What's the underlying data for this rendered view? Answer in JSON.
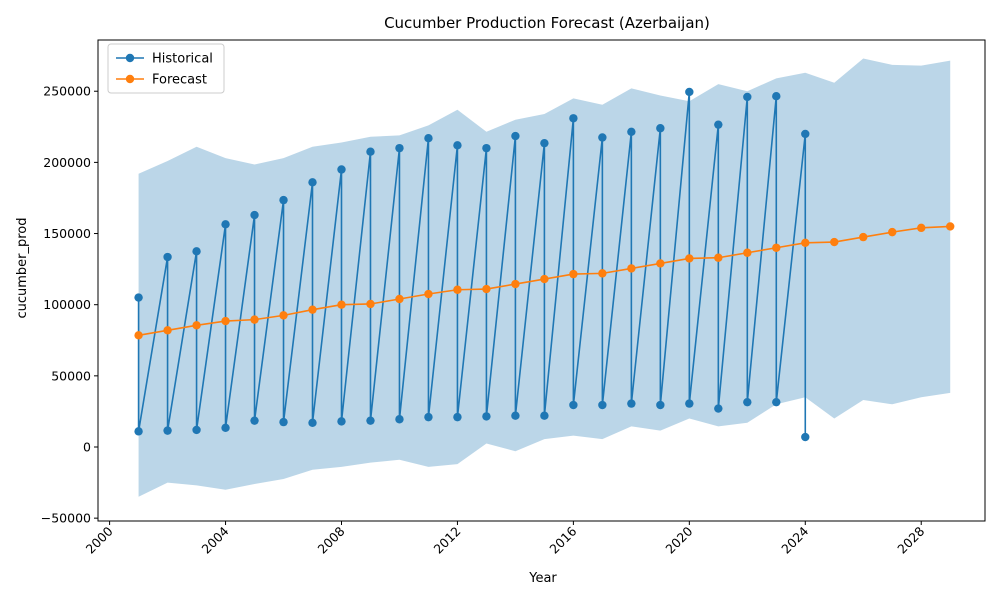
{
  "chart_data": {
    "type": "line",
    "title": "Cucumber Production Forecast (Azerbaijan)",
    "xlabel": "Year",
    "ylabel": "cucumber_prod",
    "xlim": [
      1999.6,
      2030.2
    ],
    "ylim": [
      -52000,
      286000
    ],
    "xticks": [
      2000,
      2004,
      2008,
      2012,
      2016,
      2020,
      2024,
      2028
    ],
    "yticks": [
      -50000,
      0,
      50000,
      100000,
      150000,
      200000,
      250000
    ],
    "legend_position": "top-left",
    "colors": {
      "historical": "#1f77b4",
      "forecast": "#ff7f0e",
      "band": "#1f77b4"
    },
    "series": [
      {
        "name": "Historical",
        "marker": "circle",
        "points": [
          [
            2001,
            105000
          ],
          [
            2001,
            11000
          ],
          [
            2002,
            133500
          ],
          [
            2002,
            11500
          ],
          [
            2003,
            137500
          ],
          [
            2003,
            12000
          ],
          [
            2004,
            156500
          ],
          [
            2004,
            13500
          ],
          [
            2005,
            163000
          ],
          [
            2005,
            18500
          ],
          [
            2006,
            173500
          ],
          [
            2006,
            17500
          ],
          [
            2007,
            186000
          ],
          [
            2007,
            17000
          ],
          [
            2008,
            195000
          ],
          [
            2008,
            18000
          ],
          [
            2009,
            207500
          ],
          [
            2009,
            18500
          ],
          [
            2010,
            210000
          ],
          [
            2010,
            19500
          ],
          [
            2011,
            217000
          ],
          [
            2011,
            21000
          ],
          [
            2012,
            212000
          ],
          [
            2012,
            21000
          ],
          [
            2013,
            210000
          ],
          [
            2013,
            21500
          ],
          [
            2014,
            218500
          ],
          [
            2014,
            22000
          ],
          [
            2015,
            213500
          ],
          [
            2015,
            22000
          ],
          [
            2016,
            231000
          ],
          [
            2016,
            29500
          ],
          [
            2017,
            217500
          ],
          [
            2017,
            29500
          ],
          [
            2018,
            221500
          ],
          [
            2018,
            30500
          ],
          [
            2019,
            224000
          ],
          [
            2019,
            29500
          ],
          [
            2020,
            249500
          ],
          [
            2020,
            30500
          ],
          [
            2021,
            226500
          ],
          [
            2021,
            27000
          ],
          [
            2022,
            246000
          ],
          [
            2022,
            31500
          ],
          [
            2023,
            246500
          ],
          [
            2023,
            31500
          ],
          [
            2024,
            220000
          ],
          [
            2024,
            7000
          ]
        ]
      },
      {
        "name": "Forecast",
        "marker": "circle",
        "points": [
          [
            2001,
            78500
          ],
          [
            2002,
            82000
          ],
          [
            2003,
            85500
          ],
          [
            2004,
            88500
          ],
          [
            2005,
            89500
          ],
          [
            2006,
            92500
          ],
          [
            2007,
            96500
          ],
          [
            2008,
            100000
          ],
          [
            2009,
            100500
          ],
          [
            2010,
            104000
          ],
          [
            2011,
            107500
          ],
          [
            2012,
            110500
          ],
          [
            2013,
            111000
          ],
          [
            2014,
            114500
          ],
          [
            2015,
            118000
          ],
          [
            2016,
            121500
          ],
          [
            2017,
            122000
          ],
          [
            2018,
            125500
          ],
          [
            2019,
            129000
          ],
          [
            2020,
            132500
          ],
          [
            2021,
            133000
          ],
          [
            2022,
            136500
          ],
          [
            2023,
            140000
          ],
          [
            2024,
            143500
          ],
          [
            2025,
            144000
          ],
          [
            2026,
            147500
          ],
          [
            2027,
            151000
          ],
          [
            2028,
            154000
          ],
          [
            2029,
            155000
          ]
        ]
      }
    ],
    "confidence_band": {
      "x": [
        2001,
        2002,
        2003,
        2004,
        2005,
        2006,
        2007,
        2008,
        2009,
        2010,
        2011,
        2012,
        2013,
        2014,
        2015,
        2016,
        2017,
        2018,
        2019,
        2020,
        2021,
        2022,
        2023,
        2024,
        2025,
        2026,
        2027,
        2028,
        2029
      ],
      "lower": [
        -35000,
        -25000,
        -27000,
        -30000,
        -26000,
        -22500,
        -16000,
        -14000,
        -11000,
        -9000,
        -14000,
        -12000,
        2500,
        -3000,
        5500,
        8000,
        5500,
        14500,
        11500,
        20000,
        14500,
        17000,
        30000,
        35000,
        20000,
        33000,
        30000,
        35000,
        38000
      ],
      "upper": [
        192000,
        201000,
        211000,
        203000,
        198500,
        203000,
        211000,
        214000,
        218000,
        219000,
        226000,
        237000,
        221500,
        230000,
        234000,
        245000,
        240500,
        252000,
        247000,
        243000,
        255000,
        250000,
        259000,
        263000,
        256000,
        273000,
        268500,
        268000,
        271500
      ]
    }
  }
}
